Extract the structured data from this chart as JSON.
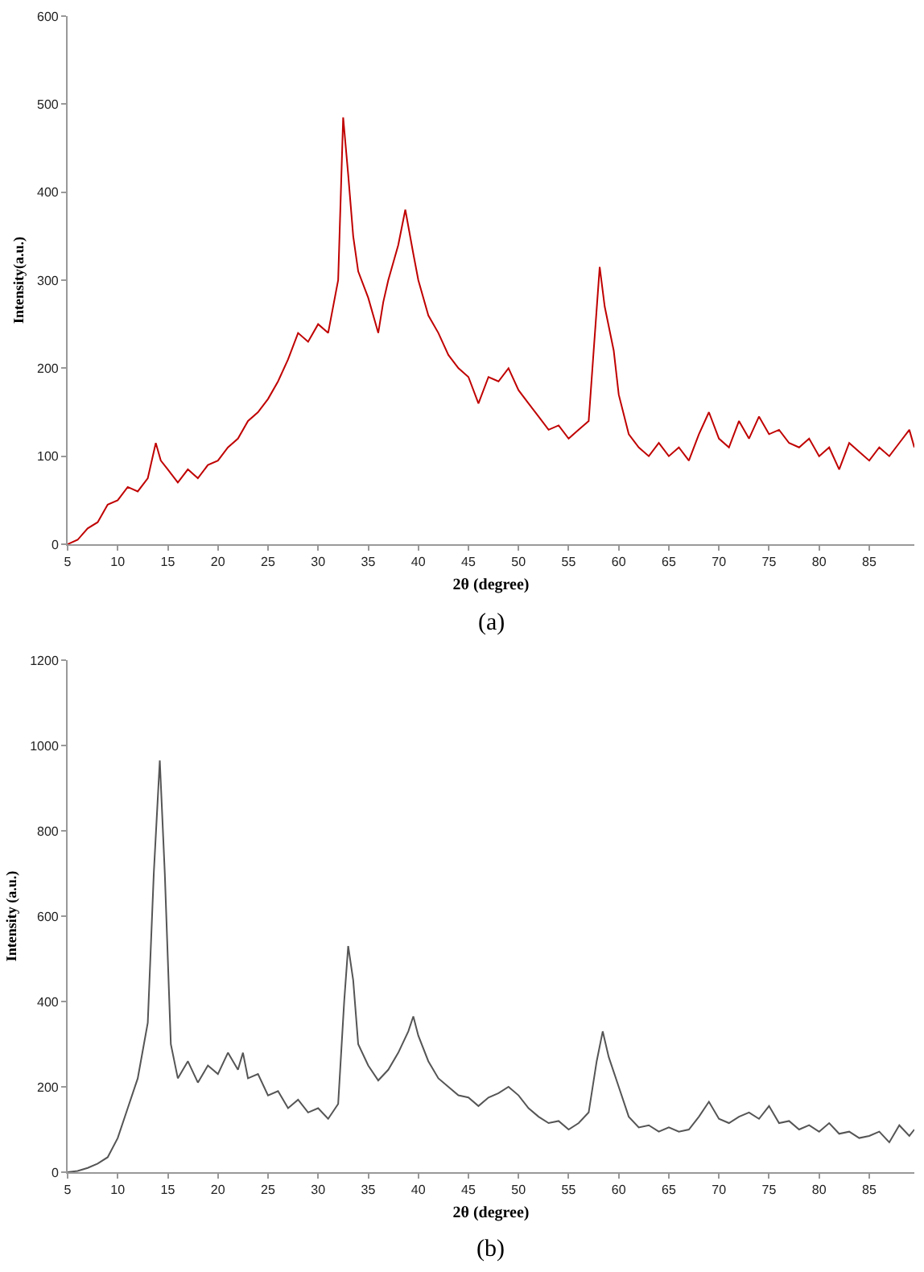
{
  "chart_data": [
    {
      "type": "line",
      "xlabel": "2θ (degree)",
      "ylabel": "Intensity(a.u.)",
      "annotations": [
        "(a)"
      ],
      "xlim": [
        5,
        89.5
      ],
      "xticks": [
        5,
        10,
        15,
        20,
        25,
        30,
        35,
        40,
        45,
        50,
        55,
        60,
        65,
        70,
        75,
        80,
        85
      ],
      "ylim": [
        0,
        600
      ],
      "yticks": [
        0,
        100,
        200,
        300,
        400,
        500,
        600
      ],
      "x": [
        5,
        6,
        7,
        8,
        9,
        10,
        11,
        12,
        13,
        13.8,
        14.3,
        15,
        16,
        17,
        18,
        19,
        20,
        21,
        22,
        23,
        24,
        25,
        26,
        27,
        28,
        29,
        30,
        31,
        32,
        32.5,
        33,
        33.5,
        34,
        35,
        36,
        36.5,
        37,
        38,
        38.7,
        39.5,
        40,
        41,
        42,
        43,
        44,
        45,
        46,
        47,
        48,
        49,
        50,
        51,
        52,
        53,
        54,
        55,
        56,
        57,
        57.5,
        58.1,
        58.6,
        59.5,
        60,
        61,
        62,
        63,
        64,
        65,
        66,
        67,
        68,
        69,
        70,
        71,
        72,
        73,
        74,
        75,
        76,
        77,
        78,
        79,
        80,
        81,
        82,
        83,
        84,
        85,
        86,
        87,
        88,
        89,
        89.5
      ],
      "series": [
        {
          "color": "#c00000",
          "values": [
            0,
            5,
            18,
            25,
            45,
            50,
            65,
            60,
            75,
            115,
            95,
            85,
            70,
            85,
            75,
            90,
            95,
            110,
            120,
            140,
            150,
            165,
            185,
            210,
            240,
            230,
            250,
            240,
            300,
            485,
            420,
            350,
            310,
            280,
            240,
            275,
            300,
            340,
            380,
            330,
            300,
            260,
            240,
            215,
            200,
            190,
            160,
            190,
            185,
            200,
            175,
            160,
            145,
            130,
            135,
            120,
            130,
            140,
            220,
            315,
            270,
            220,
            170,
            125,
            110,
            100,
            115,
            100,
            110,
            95,
            125,
            150,
            120,
            110,
            140,
            120,
            145,
            125,
            130,
            115,
            110,
            120,
            100,
            110,
            85,
            115,
            105,
            95,
            110,
            100,
            115,
            130,
            110
          ]
        }
      ]
    },
    {
      "type": "line",
      "xlabel": "2θ (degree)",
      "ylabel": "Intensity (a.u.)",
      "annotations": [
        "(b)"
      ],
      "xlim": [
        5,
        89.5
      ],
      "xticks": [
        5,
        10,
        15,
        20,
        25,
        30,
        35,
        40,
        45,
        50,
        55,
        60,
        65,
        70,
        75,
        80,
        85
      ],
      "ylim": [
        0,
        1200
      ],
      "yticks": [
        0,
        200,
        400,
        600,
        800,
        1000,
        1200
      ],
      "x": [
        5,
        6,
        7,
        8,
        9,
        10,
        11,
        12,
        13,
        13.6,
        14.2,
        14.7,
        15.3,
        16,
        17,
        18,
        19,
        20,
        21,
        22,
        22.5,
        23,
        24,
        25,
        26,
        27,
        28,
        29,
        30,
        31,
        32,
        32.6,
        33,
        33.5,
        34,
        35,
        36,
        37,
        38,
        39,
        39.5,
        40,
        41,
        42,
        43,
        44,
        45,
        46,
        47,
        48,
        49,
        50,
        51,
        52,
        53,
        54,
        55,
        56,
        57,
        57.8,
        58.4,
        59,
        60,
        61,
        62,
        63,
        64,
        65,
        66,
        67,
        68,
        69,
        70,
        71,
        72,
        73,
        74,
        75,
        76,
        77,
        78,
        79,
        80,
        81,
        82,
        83,
        84,
        85,
        86,
        87,
        88,
        89,
        89.5
      ],
      "series": [
        {
          "color": "#555555",
          "values": [
            0,
            3,
            10,
            20,
            35,
            80,
            150,
            220,
            350,
            700,
            965,
            700,
            300,
            220,
            260,
            210,
            250,
            230,
            280,
            240,
            280,
            220,
            230,
            180,
            190,
            150,
            170,
            140,
            150,
            125,
            160,
            400,
            530,
            450,
            300,
            250,
            215,
            240,
            280,
            330,
            365,
            320,
            260,
            220,
            200,
            180,
            175,
            155,
            175,
            185,
            200,
            180,
            150,
            130,
            115,
            120,
            100,
            115,
            140,
            260,
            330,
            270,
            200,
            130,
            105,
            110,
            95,
            105,
            95,
            100,
            130,
            165,
            125,
            115,
            130,
            140,
            125,
            155,
            115,
            120,
            100,
            110,
            95,
            115,
            90,
            95,
            80,
            85,
            95,
            70,
            110,
            85,
            100
          ]
        }
      ]
    }
  ]
}
